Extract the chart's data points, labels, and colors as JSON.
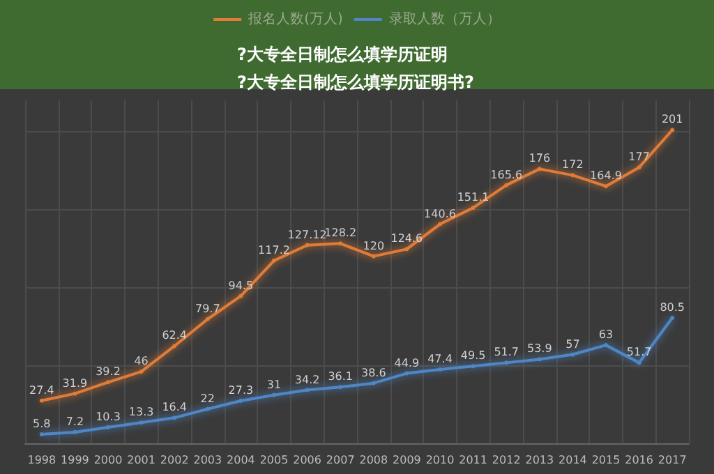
{
  "chart_data": {
    "type": "line",
    "title": "?大专全日制怎么填学历证明\n?大专全日制怎么填学历证明书?",
    "categories": [
      "1998",
      "1999",
      "2000",
      "2001",
      "2002",
      "2003",
      "2004",
      "2005",
      "2006",
      "2007",
      "2008",
      "2009",
      "2010",
      "2011",
      "2012",
      "2013",
      "2014",
      "2015",
      "2016",
      "2017"
    ],
    "series": [
      {
        "name": "报名人数(万人)",
        "color": "#e07b39",
        "values": [
          27.4,
          31.9,
          39.2,
          46,
          62.4,
          79.7,
          94.5,
          117.2,
          127.12,
          128.2,
          120,
          124.6,
          140.6,
          151.1,
          165.6,
          176,
          172,
          164.9,
          177,
          201
        ]
      },
      {
        "name": "录取人数（万人）",
        "color": "#4f86c6",
        "values": [
          5.8,
          7.2,
          10.3,
          13.3,
          16.4,
          22,
          27.3,
          31,
          34.2,
          36.1,
          38.6,
          44.9,
          47.4,
          49.5,
          51.7,
          53.9,
          57,
          63,
          51.7,
          80.5
        ]
      }
    ],
    "ylim": [
      0,
      220
    ],
    "yticks": [
      {
        "value": 0,
        "label": null
      },
      {
        "value": 50,
        "label": null
      },
      {
        "value": 100,
        "label": null
      },
      {
        "value": 150,
        "label": null
      },
      {
        "value": 200,
        "label": null
      }
    ],
    "tick_labels": "x",
    "grid": true,
    "legend": "top",
    "data_labels": true,
    "marker": "circle",
    "line_style": "solid"
  }
}
